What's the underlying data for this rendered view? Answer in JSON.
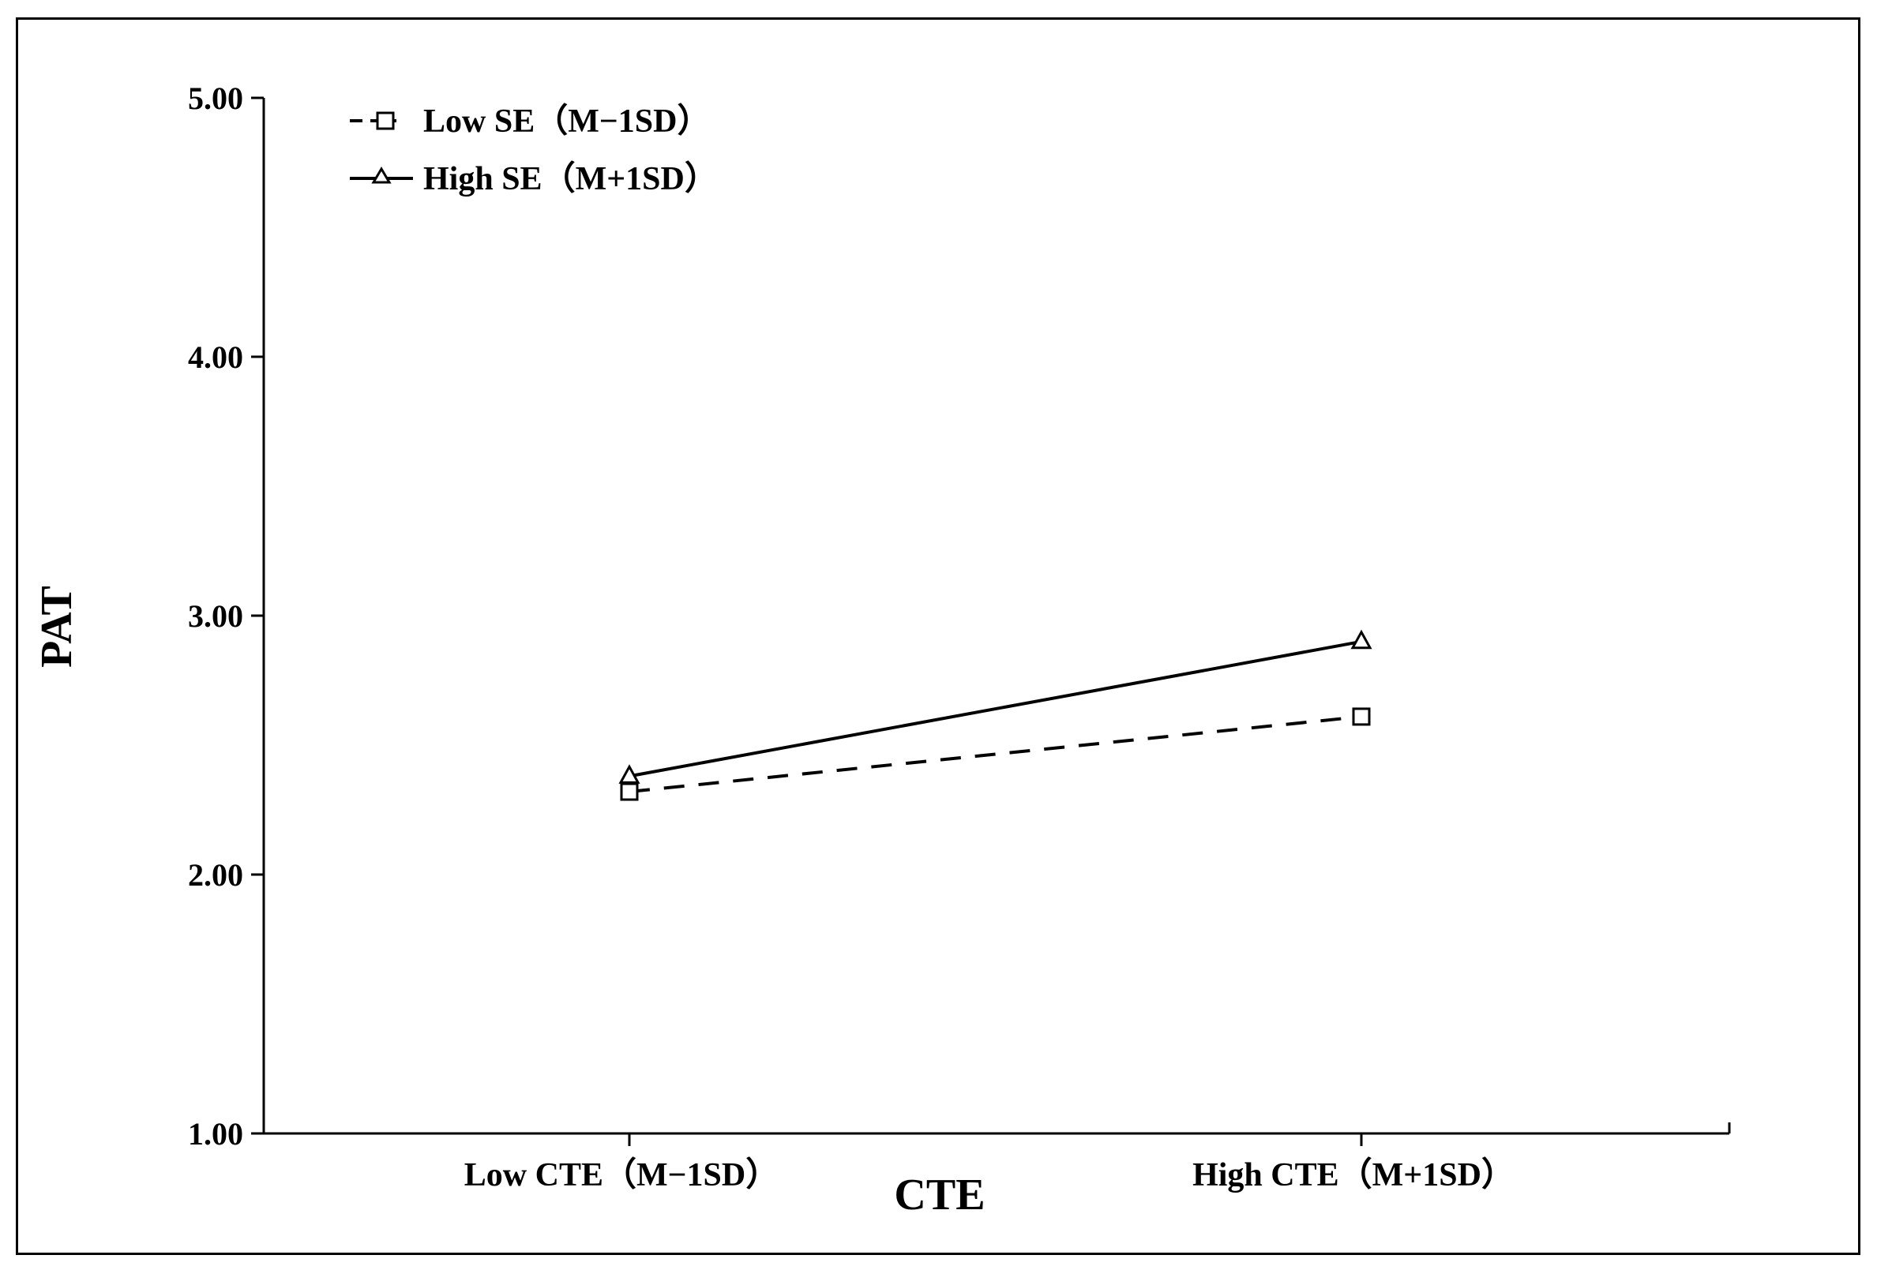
{
  "chart_data": {
    "type": "line",
    "xlabel": "CTE",
    "ylabel": "PAT",
    "ylim": [
      1.0,
      5.0
    ],
    "yticks": [
      "1.00",
      "2.00",
      "3.00",
      "4.00",
      "5.00"
    ],
    "categories": [
      "Low CTE（M−1SD）",
      "High CTE（M+1SD）"
    ],
    "legend_position": "top-left",
    "series": [
      {
        "name": "Low SE（M−1SD）",
        "values": [
          2.32,
          2.61
        ],
        "marker": "square",
        "line_style": "dashed",
        "color": "#000000"
      },
      {
        "name": "High SE（M+1SD）",
        "values": [
          2.38,
          2.9
        ],
        "marker": "triangle",
        "line_style": "solid",
        "color": "#000000"
      }
    ],
    "grid": false
  }
}
